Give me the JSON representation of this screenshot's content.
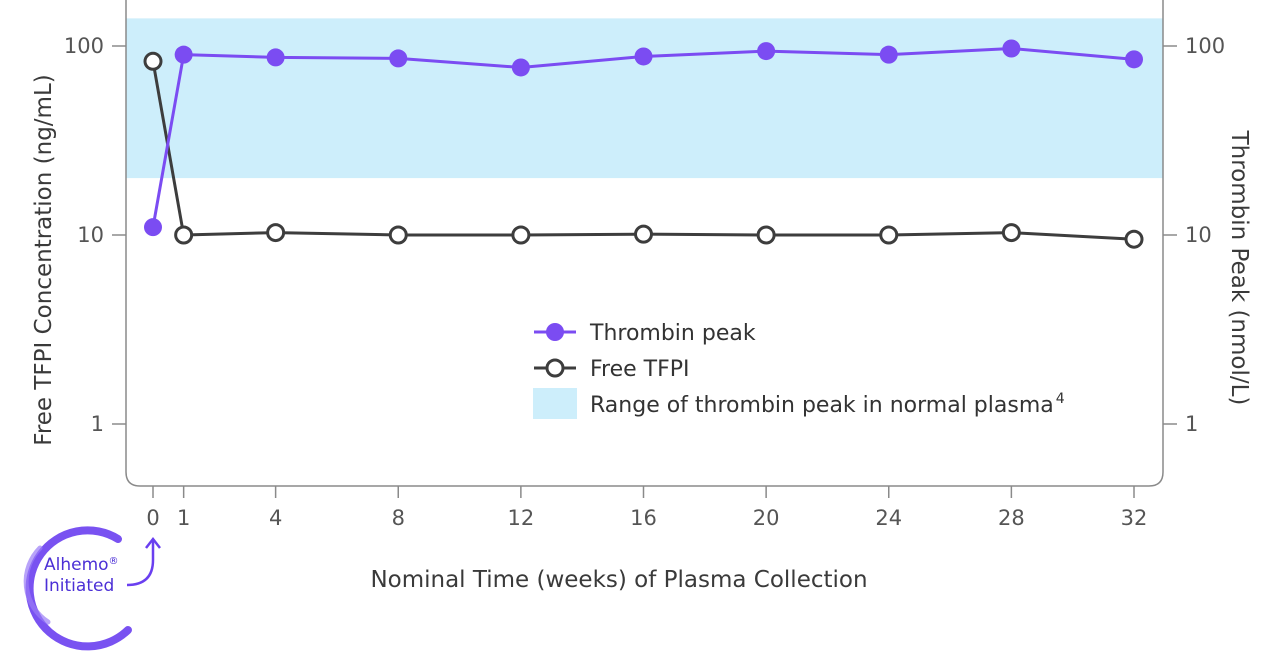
{
  "chart_data": {
    "type": "line",
    "x_label": "Nominal Time (weeks) of Plasma Collection",
    "y_left_label": "Free TFPI Concentration (ng/mL)",
    "y_right_label": "Thrombin Peak (nmol/L)",
    "y_scale": "log",
    "y_range": [
      0.5,
      200
    ],
    "y_ticks": [
      1,
      10,
      100
    ],
    "y_tick_labels": [
      "1",
      "10",
      "100"
    ],
    "x_ticks": [
      0,
      1,
      4,
      8,
      12,
      16,
      20,
      24,
      28,
      32
    ],
    "x_tick_labels": [
      "0",
      "1",
      "4",
      "8",
      "12",
      "16",
      "20",
      "24",
      "28",
      "32"
    ],
    "normal_range": {
      "low": 20,
      "high": 140,
      "label": "Range of thrombin peak in normal plasma",
      "label_sup": "4",
      "color": "#cdeefb"
    },
    "series": [
      {
        "name": "Thrombin peak",
        "axis": "right",
        "marker": "filled-circle",
        "color": "#7b4cf2",
        "x": [
          0,
          1,
          4,
          8,
          12,
          16,
          20,
          24,
          28,
          32
        ],
        "y": [
          11,
          90,
          87,
          86,
          77,
          88,
          94,
          90,
          97,
          85
        ]
      },
      {
        "name": "Free TFPI",
        "axis": "left",
        "marker": "open-circle",
        "color": "#3d3d3d",
        "x": [
          0,
          1,
          4,
          8,
          12,
          16,
          20,
          24,
          28,
          32
        ],
        "y": [
          83,
          10,
          10.3,
          10,
          10,
          10.1,
          10,
          10,
          10.3,
          9.5
        ]
      }
    ],
    "legend_position": "center-right",
    "grid": false
  },
  "logo": {
    "line1": "Alhemo",
    "reg": "®",
    "line2": "Initiated",
    "color": "#4b2fd6"
  }
}
